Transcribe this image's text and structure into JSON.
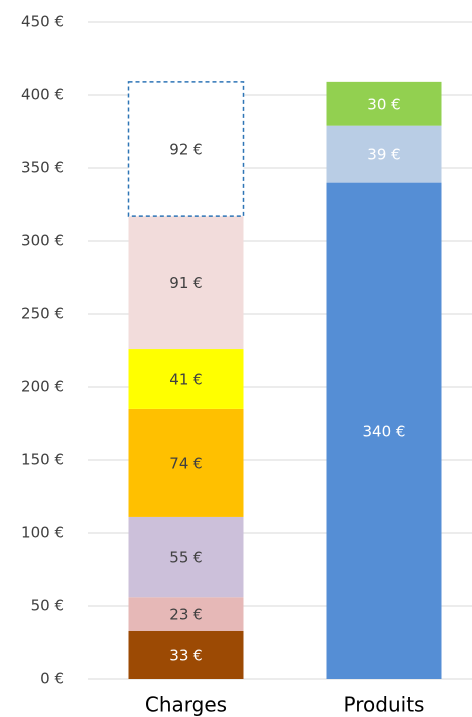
{
  "chart_data": {
    "type": "stacked-bar",
    "categories": [
      "Charges",
      "Produits"
    ],
    "series": [
      {
        "color": "#9c4a04",
        "label_color": "#ffffff",
        "values": [
          33,
          null
        ],
        "value_labels": [
          "33 €",
          null
        ]
      },
      {
        "color": "#e6b8b7",
        "label_color": "#404040",
        "values": [
          23,
          null
        ],
        "value_labels": [
          "23 €",
          null
        ]
      },
      {
        "color": "#ccc0da",
        "label_color": "#404040",
        "values": [
          55,
          null
        ],
        "value_labels": [
          "55 €",
          null
        ]
      },
      {
        "color": "#ffc000",
        "label_color": "#404040",
        "values": [
          74,
          null
        ],
        "value_labels": [
          "74 €",
          null
        ]
      },
      {
        "color": "#ffff00",
        "label_color": "#404040",
        "values": [
          41,
          null
        ],
        "value_labels": [
          "41 €",
          null
        ]
      },
      {
        "color": "#f2dcdb",
        "label_color": "#404040",
        "values": [
          91,
          null
        ],
        "value_labels": [
          "91 €",
          null
        ]
      },
      {
        "color": "#ffffff",
        "border": "dashed",
        "border_color": "#2e75b6",
        "label_color": "#404040",
        "values": [
          92,
          null
        ],
        "value_labels": [
          "92 €",
          null
        ]
      },
      {
        "color": "#558ed5",
        "label_color": "#ffffff",
        "values": [
          null,
          340
        ],
        "value_labels": [
          null,
          "340 €"
        ]
      },
      {
        "color": "#b9cde5",
        "label_color": "#ffffff",
        "values": [
          null,
          39
        ],
        "value_labels": [
          null,
          "39 €"
        ]
      },
      {
        "color": "#92d050",
        "label_color": "#ffffff",
        "values": [
          null,
          30
        ],
        "value_labels": [
          null,
          "30 €"
        ]
      }
    ],
    "ylim": [
      0,
      450
    ],
    "yticks": [
      {
        "value": 0,
        "label": "0 €"
      },
      {
        "value": 50,
        "label": "50 €"
      },
      {
        "value": 100,
        "label": "100 €"
      },
      {
        "value": 150,
        "label": "150 €"
      },
      {
        "value": 200,
        "label": "200 €"
      },
      {
        "value": 250,
        "label": "250 €"
      },
      {
        "value": 300,
        "label": "300 €"
      },
      {
        "value": 350,
        "label": "350 €"
      },
      {
        "value": 400,
        "label": "400 €"
      },
      {
        "value": 450,
        "label": "450 €"
      }
    ],
    "grid": true
  }
}
